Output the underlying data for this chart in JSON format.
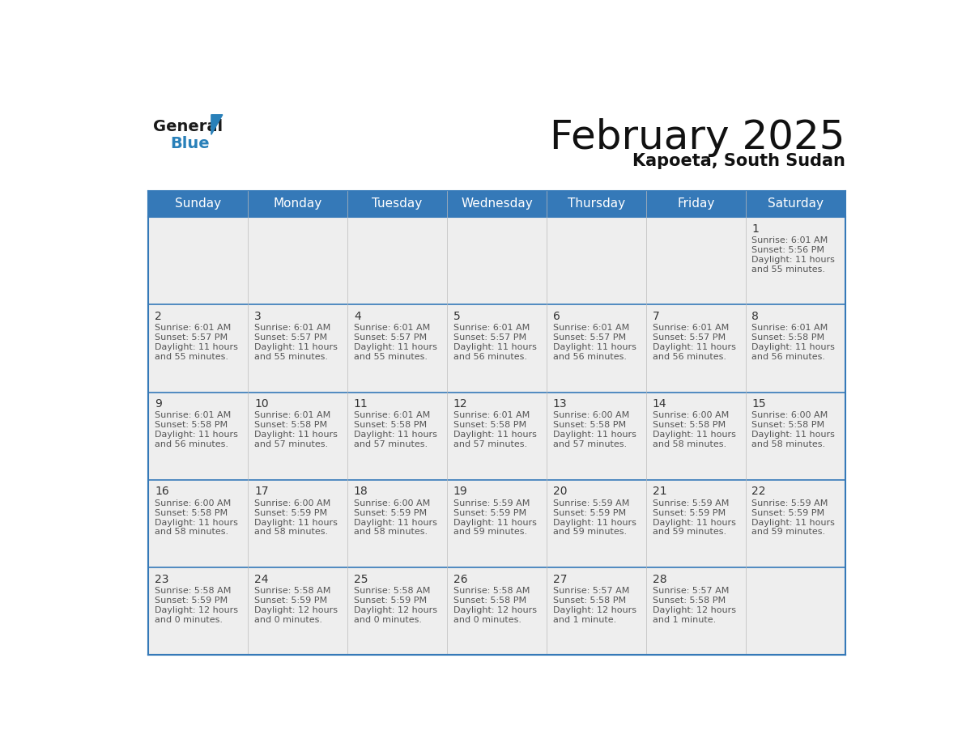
{
  "title": "February 2025",
  "subtitle": "Kapoeta, South Sudan",
  "header_color": "#3579B8",
  "header_text_color": "#FFFFFF",
  "days_of_week": [
    "Sunday",
    "Monday",
    "Tuesday",
    "Wednesday",
    "Thursday",
    "Friday",
    "Saturday"
  ],
  "background_color": "#FFFFFF",
  "cell_bg_color": "#EEEEEE",
  "border_color": "#3579B8",
  "day_num_color": "#333333",
  "text_color": "#555555",
  "calendar_data": [
    [
      null,
      null,
      null,
      null,
      null,
      null,
      {
        "day": 1,
        "sunrise": "6:01 AM",
        "sunset": "5:56 PM",
        "daylight_line1": "11 hours",
        "daylight_line2": "and 55 minutes."
      }
    ],
    [
      {
        "day": 2,
        "sunrise": "6:01 AM",
        "sunset": "5:57 PM",
        "daylight_line1": "11 hours",
        "daylight_line2": "and 55 minutes."
      },
      {
        "day": 3,
        "sunrise": "6:01 AM",
        "sunset": "5:57 PM",
        "daylight_line1": "11 hours",
        "daylight_line2": "and 55 minutes."
      },
      {
        "day": 4,
        "sunrise": "6:01 AM",
        "sunset": "5:57 PM",
        "daylight_line1": "11 hours",
        "daylight_line2": "and 55 minutes."
      },
      {
        "day": 5,
        "sunrise": "6:01 AM",
        "sunset": "5:57 PM",
        "daylight_line1": "11 hours",
        "daylight_line2": "and 56 minutes."
      },
      {
        "day": 6,
        "sunrise": "6:01 AM",
        "sunset": "5:57 PM",
        "daylight_line1": "11 hours",
        "daylight_line2": "and 56 minutes."
      },
      {
        "day": 7,
        "sunrise": "6:01 AM",
        "sunset": "5:57 PM",
        "daylight_line1": "11 hours",
        "daylight_line2": "and 56 minutes."
      },
      {
        "day": 8,
        "sunrise": "6:01 AM",
        "sunset": "5:58 PM",
        "daylight_line1": "11 hours",
        "daylight_line2": "and 56 minutes."
      }
    ],
    [
      {
        "day": 9,
        "sunrise": "6:01 AM",
        "sunset": "5:58 PM",
        "daylight_line1": "11 hours",
        "daylight_line2": "and 56 minutes."
      },
      {
        "day": 10,
        "sunrise": "6:01 AM",
        "sunset": "5:58 PM",
        "daylight_line1": "11 hours",
        "daylight_line2": "and 57 minutes."
      },
      {
        "day": 11,
        "sunrise": "6:01 AM",
        "sunset": "5:58 PM",
        "daylight_line1": "11 hours",
        "daylight_line2": "and 57 minutes."
      },
      {
        "day": 12,
        "sunrise": "6:01 AM",
        "sunset": "5:58 PM",
        "daylight_line1": "11 hours",
        "daylight_line2": "and 57 minutes."
      },
      {
        "day": 13,
        "sunrise": "6:00 AM",
        "sunset": "5:58 PM",
        "daylight_line1": "11 hours",
        "daylight_line2": "and 57 minutes."
      },
      {
        "day": 14,
        "sunrise": "6:00 AM",
        "sunset": "5:58 PM",
        "daylight_line1": "11 hours",
        "daylight_line2": "and 58 minutes."
      },
      {
        "day": 15,
        "sunrise": "6:00 AM",
        "sunset": "5:58 PM",
        "daylight_line1": "11 hours",
        "daylight_line2": "and 58 minutes."
      }
    ],
    [
      {
        "day": 16,
        "sunrise": "6:00 AM",
        "sunset": "5:58 PM",
        "daylight_line1": "11 hours",
        "daylight_line2": "and 58 minutes."
      },
      {
        "day": 17,
        "sunrise": "6:00 AM",
        "sunset": "5:59 PM",
        "daylight_line1": "11 hours",
        "daylight_line2": "and 58 minutes."
      },
      {
        "day": 18,
        "sunrise": "6:00 AM",
        "sunset": "5:59 PM",
        "daylight_line1": "11 hours",
        "daylight_line2": "and 58 minutes."
      },
      {
        "day": 19,
        "sunrise": "5:59 AM",
        "sunset": "5:59 PM",
        "daylight_line1": "11 hours",
        "daylight_line2": "and 59 minutes."
      },
      {
        "day": 20,
        "sunrise": "5:59 AM",
        "sunset": "5:59 PM",
        "daylight_line1": "11 hours",
        "daylight_line2": "and 59 minutes."
      },
      {
        "day": 21,
        "sunrise": "5:59 AM",
        "sunset": "5:59 PM",
        "daylight_line1": "11 hours",
        "daylight_line2": "and 59 minutes."
      },
      {
        "day": 22,
        "sunrise": "5:59 AM",
        "sunset": "5:59 PM",
        "daylight_line1": "11 hours",
        "daylight_line2": "and 59 minutes."
      }
    ],
    [
      {
        "day": 23,
        "sunrise": "5:58 AM",
        "sunset": "5:59 PM",
        "daylight_line1": "12 hours",
        "daylight_line2": "and 0 minutes."
      },
      {
        "day": 24,
        "sunrise": "5:58 AM",
        "sunset": "5:59 PM",
        "daylight_line1": "12 hours",
        "daylight_line2": "and 0 minutes."
      },
      {
        "day": 25,
        "sunrise": "5:58 AM",
        "sunset": "5:59 PM",
        "daylight_line1": "12 hours",
        "daylight_line2": "and 0 minutes."
      },
      {
        "day": 26,
        "sunrise": "5:58 AM",
        "sunset": "5:58 PM",
        "daylight_line1": "12 hours",
        "daylight_line2": "and 0 minutes."
      },
      {
        "day": 27,
        "sunrise": "5:57 AM",
        "sunset": "5:58 PM",
        "daylight_line1": "12 hours",
        "daylight_line2": "and 1 minute."
      },
      {
        "day": 28,
        "sunrise": "5:57 AM",
        "sunset": "5:58 PM",
        "daylight_line1": "12 hours",
        "daylight_line2": "and 1 minute."
      },
      null
    ]
  ],
  "logo_text1": "General",
  "logo_text2": "Blue",
  "logo_color1": "#1a1a1a",
  "logo_color2": "#2980B9",
  "logo_triangle_color": "#2980B9",
  "title_fontsize": 36,
  "subtitle_fontsize": 15,
  "header_fontsize": 11,
  "day_num_fontsize": 10,
  "cell_text_fontsize": 8
}
